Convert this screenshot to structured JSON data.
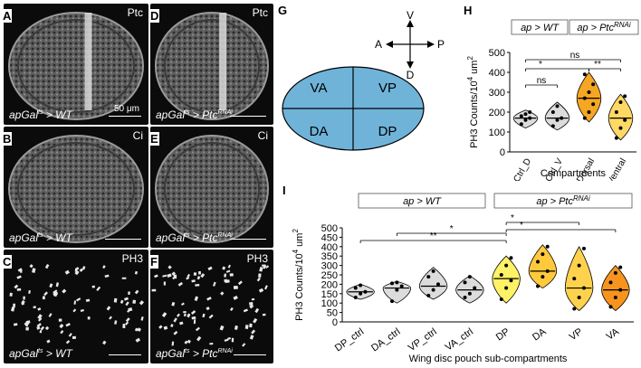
{
  "panels": {
    "A": {
      "letter": "A",
      "marker": "Ptc",
      "genotype": "apGal",
      "genotype_sup": "ts",
      "genotype_rest": " > WT",
      "scalebar": "50 μm"
    },
    "B": {
      "letter": "B",
      "marker": "Ci",
      "genotype": "apGal",
      "genotype_sup": "ts",
      "genotype_rest": " > WT"
    },
    "C": {
      "letter": "C",
      "marker": "PH3",
      "genotype": "apGal",
      "genotype_sup": "ts",
      "genotype_rest": " > WT"
    },
    "D": {
      "letter": "D",
      "marker": "Ptc",
      "genotype": "apGal",
      "genotype_sup": "ts",
      "genotype_rest": " > Ptc",
      "genotype_rest_sup": "RNAi"
    },
    "E": {
      "letter": "E",
      "marker": "Ci",
      "genotype": "apGal",
      "genotype_sup": "ts",
      "genotype_rest": " > Ptc",
      "genotype_rest_sup": "RNAi"
    },
    "F": {
      "letter": "F",
      "marker": "PH3",
      "genotype": "apGal",
      "genotype_sup": "ts",
      "genotype_rest": " > Ptc",
      "genotype_rest_sup": "RNAi"
    }
  },
  "diagram": {
    "letter": "G",
    "quadrants": [
      "VA",
      "VP",
      "DA",
      "DP"
    ],
    "axes": {
      "up": "V",
      "down": "D",
      "left": "A",
      "right": "P"
    },
    "fill": "#6fb3d9"
  },
  "colors": {
    "ctrl": "#dcdcdc",
    "dorsal": "#f5a623",
    "ventral": "#ffd866",
    "dp": "#fff266",
    "da": "#ffc93c",
    "vp": "#ffd24d",
    "va": "#f7941d"
  },
  "chart_data": [
    {
      "letter": "H",
      "type": "violin",
      "legend": [
        "ap > WT",
        "ap > Ptc",
        "RNAi"
      ],
      "ylabel": "PH3 Counts/10",
      "ylabel_sup": "4",
      "ylabel_unit": " um",
      "ylabel_unit_sup": "2",
      "xlabel": "Compartments",
      "ylim": [
        0,
        500
      ],
      "yticks": [
        0,
        100,
        200,
        300,
        400,
        500
      ],
      "categories": [
        "Ctrl_D",
        "Ctrl_V",
        "Dorsal",
        "Ventral"
      ],
      "series": [
        {
          "category": "Ctrl_D",
          "median": 170,
          "min": 120,
          "max": 210,
          "points": [
            140,
            160,
            170,
            180,
            190,
            200
          ]
        },
        {
          "category": "Ctrl_V",
          "median": 170,
          "min": 110,
          "max": 250,
          "points": [
            130,
            160,
            170,
            200,
            230
          ]
        },
        {
          "category": "Dorsal",
          "median": 270,
          "min": 150,
          "max": 400,
          "points": [
            170,
            200,
            240,
            270,
            300,
            340,
            390
          ]
        },
        {
          "category": "Ventral",
          "median": 170,
          "min": 60,
          "max": 290,
          "points": [
            70,
            120,
            160,
            200,
            250,
            280
          ]
        }
      ],
      "significance": [
        {
          "from": "Ctrl_D",
          "to": "Ctrl_V",
          "label": "ns"
        },
        {
          "from": "Ctrl_D",
          "to": "Dorsal",
          "label": "*"
        },
        {
          "from": "Dorsal",
          "to": "Ventral",
          "label": "**"
        },
        {
          "from": "Ctrl_D",
          "to": "Ventral",
          "label": "ns"
        }
      ]
    },
    {
      "letter": "I",
      "type": "violin",
      "legend": [
        "ap > WT",
        "ap > Ptc",
        "RNAi"
      ],
      "ylabel": "PH3 Counts/10",
      "ylabel_sup": "4",
      "ylabel_unit": " um",
      "ylabel_unit_sup": "2",
      "xlabel": "Wing disc pouch sub-compartments",
      "ylim": [
        0,
        500
      ],
      "yticks": [
        0,
        50,
        100,
        150,
        200,
        250,
        300,
        350,
        400,
        450,
        500
      ],
      "categories": [
        "DP_ctrl",
        "DA_ctrl",
        "VP_ctrl",
        "VA_ctrl",
        "DP",
        "DA",
        "VP",
        "VA"
      ],
      "series": [
        {
          "category": "DP_ctrl",
          "median": 160,
          "min": 120,
          "max": 200,
          "points": [
            130,
            150,
            160,
            180,
            195
          ]
        },
        {
          "category": "DA_ctrl",
          "median": 180,
          "min": 100,
          "max": 215,
          "points": [
            110,
            170,
            190,
            205,
            210
          ]
        },
        {
          "category": "VP_ctrl",
          "median": 190,
          "min": 120,
          "max": 290,
          "points": [
            140,
            170,
            200,
            240,
            270
          ]
        },
        {
          "category": "VA_ctrl",
          "median": 170,
          "min": 100,
          "max": 245,
          "points": [
            130,
            150,
            180,
            210,
            240
          ]
        },
        {
          "category": "DP",
          "median": 230,
          "min": 100,
          "max": 350,
          "points": [
            120,
            180,
            220,
            250,
            300,
            340
          ]
        },
        {
          "category": "DA",
          "median": 270,
          "min": 180,
          "max": 410,
          "points": [
            190,
            240,
            270,
            320,
            360,
            400
          ]
        },
        {
          "category": "VP",
          "median": 180,
          "min": 60,
          "max": 400,
          "points": [
            70,
            130,
            180,
            230,
            300,
            390
          ]
        },
        {
          "category": "VA",
          "median": 170,
          "min": 60,
          "max": 300,
          "points": [
            80,
            130,
            170,
            210,
            260,
            290
          ]
        }
      ],
      "significance": [
        {
          "from": "DA_ctrl",
          "to": "DP",
          "label": "*"
        },
        {
          "from": "DP_ctrl",
          "to": "DP",
          "label": "**"
        },
        {
          "from": "DP",
          "to": "VP",
          "label": "*"
        },
        {
          "from": "DP",
          "to": "VA",
          "label": "*"
        }
      ]
    }
  ]
}
